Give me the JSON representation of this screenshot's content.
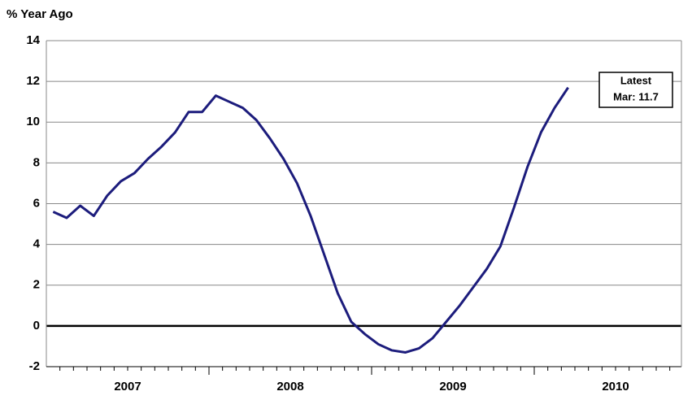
{
  "chart_data": {
    "type": "line",
    "title": "% Year Ago",
    "x_axis_labels": [
      "2007",
      "2008",
      "2009",
      "2010"
    ],
    "months_per_label": 12,
    "series": [
      {
        "color": "#1c1c7c",
        "values": [
          5.6,
          5.3,
          5.9,
          5.4,
          6.4,
          7.1,
          7.5,
          8.2,
          8.8,
          9.5,
          10.5,
          10.5,
          11.3,
          11.0,
          10.7,
          10.1,
          9.2,
          8.2,
          7.0,
          5.4,
          3.5,
          1.6,
          0.2,
          -0.4,
          -0.9,
          -1.2,
          -1.3,
          -1.1,
          -0.6,
          0.2,
          1.0,
          1.9,
          2.8,
          3.9,
          5.8,
          7.8,
          9.5,
          10.7,
          11.7
        ]
      }
    ],
    "ylim": [
      -2,
      14
    ],
    "yticks": [
      -2,
      0,
      2,
      4,
      6,
      8,
      10,
      12,
      14
    ],
    "grid": true,
    "annotation": [
      "Latest",
      "Mar: 11.7"
    ]
  }
}
